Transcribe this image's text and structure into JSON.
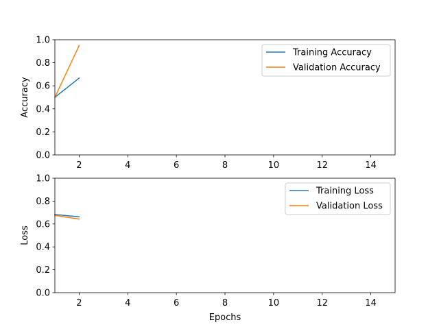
{
  "chart_data": [
    {
      "type": "line",
      "xlabel": "",
      "ylabel": "Accuracy",
      "xlim": [
        1,
        15
      ],
      "ylim": [
        0.0,
        1.0
      ],
      "xticks": [
        "2",
        "4",
        "6",
        "8",
        "10",
        "12",
        "14"
      ],
      "yticks": [
        "0.0",
        "0.2",
        "0.4",
        "0.6",
        "0.8",
        "1.0"
      ],
      "grid": false,
      "legend_position": "upper-right",
      "series": [
        {
          "name": "Training Accuracy",
          "color": "#1f77b4",
          "x": [
            1,
            2
          ],
          "y": [
            0.5,
            0.667
          ]
        },
        {
          "name": "Validation Accuracy",
          "color": "#ff7f0e",
          "x": [
            1,
            2
          ],
          "y": [
            0.5,
            0.95
          ]
        }
      ]
    },
    {
      "type": "line",
      "xlabel": "Epochs",
      "ylabel": "Loss",
      "xlim": [
        1,
        15
      ],
      "ylim": [
        0.0,
        1.0
      ],
      "xticks": [
        "2",
        "4",
        "6",
        "8",
        "10",
        "12",
        "14"
      ],
      "yticks": [
        "0.0",
        "0.2",
        "0.4",
        "0.6",
        "0.8",
        "1.0"
      ],
      "grid": false,
      "legend_position": "upper-right",
      "series": [
        {
          "name": "Training Loss",
          "color": "#1f77b4",
          "x": [
            1,
            2
          ],
          "y": [
            0.683,
            0.663
          ]
        },
        {
          "name": "Validation Loss",
          "color": "#ff7f0e",
          "x": [
            1,
            2
          ],
          "y": [
            0.675,
            0.643
          ]
        }
      ]
    }
  ]
}
